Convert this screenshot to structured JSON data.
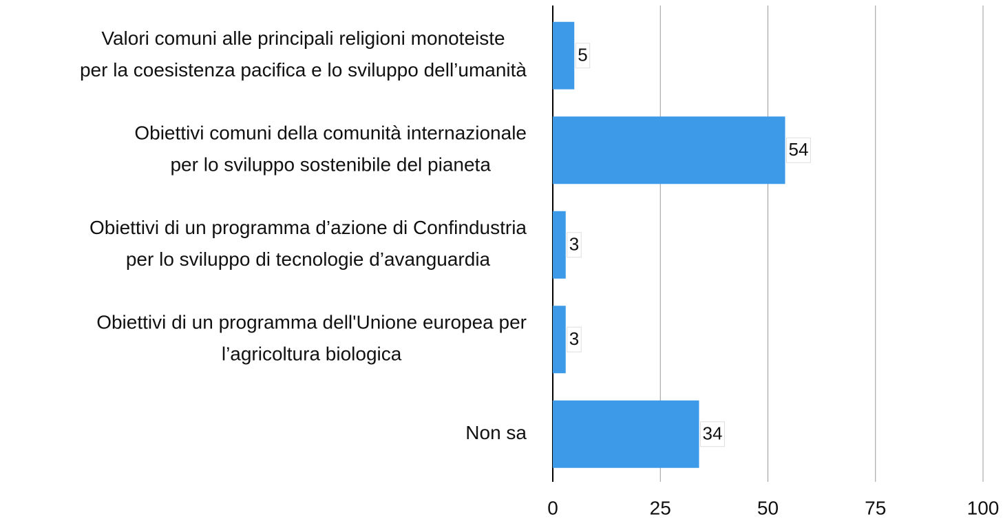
{
  "chart_data": {
    "type": "bar",
    "orientation": "horizontal",
    "categories": [
      "Valori comuni alle principali religioni monoteiste\nper la coesistenza pacifica e lo sviluppo dell’umanità",
      "Obiettivi comuni della comunità internazionale\nper lo sviluppo sostenibile del pianeta",
      "Obiettivi di un programma d’azione di Confindustria\nper lo sviluppo di tecnologie d’avanguardia",
      "Obiettivi di un programma dell'Unione europea per\nl’agricoltura biologica",
      "Non sa"
    ],
    "values": [
      5,
      54,
      3,
      3,
      34
    ],
    "color": "#3d9ae8",
    "xlim": [
      0,
      100
    ],
    "xticks": [
      0,
      25,
      50,
      75,
      100
    ],
    "grid": true
  }
}
